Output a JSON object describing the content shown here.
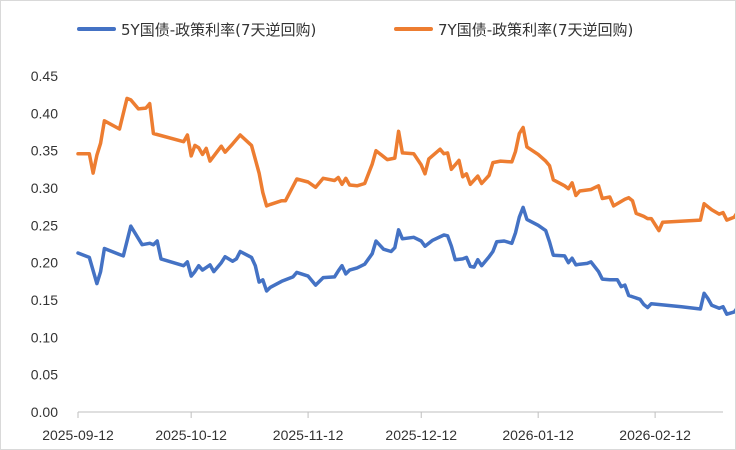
{
  "chart_data": {
    "type": "line",
    "title": "",
    "xlabel": "",
    "ylabel": "",
    "ylim": [
      0,
      0.45
    ],
    "yticks": [
      "0.00",
      "0.05",
      "0.10",
      "0.15",
      "0.20",
      "0.25",
      "0.30",
      "0.35",
      "0.40",
      "0.45"
    ],
    "xticks": [
      "2025-09-12",
      "2025-10-12",
      "2025-11-12",
      "2025-12-12",
      "2026-01-12",
      "2026-02-12"
    ],
    "xlim": [
      "2025-09-12",
      "2026-03-02"
    ],
    "grid": false,
    "legend_position": "top",
    "series": [
      {
        "name": "5Y国债-政策利率(7天逆回购)",
        "color": "#4472C4",
        "points": [
          [
            "2025-09-12",
            0.213
          ],
          [
            "2025-09-15",
            0.207
          ],
          [
            "2025-09-17",
            0.172
          ],
          [
            "2025-09-18",
            0.188
          ],
          [
            "2025-09-19",
            0.219
          ],
          [
            "2025-09-23",
            0.211
          ],
          [
            "2025-09-24",
            0.209
          ],
          [
            "2025-09-26",
            0.249
          ],
          [
            "2025-09-29",
            0.224
          ],
          [
            "2025-10-01",
            0.226
          ],
          [
            "2025-10-02",
            0.224
          ],
          [
            "2025-10-03",
            0.229
          ],
          [
            "2025-10-04",
            0.205
          ],
          [
            "2025-10-10",
            0.196
          ],
          [
            "2025-10-11",
            0.201
          ],
          [
            "2025-10-12",
            0.182
          ],
          [
            "2025-10-13",
            0.188
          ],
          [
            "2025-10-14",
            0.196
          ],
          [
            "2025-10-15",
            0.19
          ],
          [
            "2025-10-17",
            0.197
          ],
          [
            "2025-10-18",
            0.188
          ],
          [
            "2025-10-20",
            0.2
          ],
          [
            "2025-10-21",
            0.208
          ],
          [
            "2025-10-23",
            0.202
          ],
          [
            "2025-10-24",
            0.205
          ],
          [
            "2025-10-25",
            0.215
          ],
          [
            "2025-10-28",
            0.207
          ],
          [
            "2025-10-29",
            0.196
          ],
          [
            "2025-10-30",
            0.174
          ],
          [
            "2025-10-31",
            0.177
          ],
          [
            "2025-11-01",
            0.162
          ],
          [
            "2025-11-02",
            0.167
          ],
          [
            "2025-11-05",
            0.175
          ],
          [
            "2025-11-08",
            0.181
          ],
          [
            "2025-11-09",
            0.187
          ],
          [
            "2025-11-12",
            0.182
          ],
          [
            "2025-11-14",
            0.17
          ],
          [
            "2025-11-16",
            0.18
          ],
          [
            "2025-11-19",
            0.181
          ],
          [
            "2025-11-20",
            0.189
          ],
          [
            "2025-11-21",
            0.196
          ],
          [
            "2025-11-22",
            0.185
          ],
          [
            "2025-11-23",
            0.19
          ],
          [
            "2025-11-25",
            0.193
          ],
          [
            "2025-11-27",
            0.198
          ],
          [
            "2025-11-29",
            0.212
          ],
          [
            "2025-11-30",
            0.229
          ],
          [
            "2025-12-02",
            0.218
          ],
          [
            "2025-12-04",
            0.215
          ],
          [
            "2025-12-05",
            0.22
          ],
          [
            "2025-12-06",
            0.244
          ],
          [
            "2025-12-07",
            0.232
          ],
          [
            "2025-12-10",
            0.234
          ],
          [
            "2025-12-12",
            0.229
          ],
          [
            "2025-12-13",
            0.222
          ],
          [
            "2025-12-15",
            0.23
          ],
          [
            "2025-12-18",
            0.237
          ],
          [
            "2025-12-19",
            0.236
          ],
          [
            "2025-12-20",
            0.222
          ],
          [
            "2025-12-21",
            0.204
          ],
          [
            "2025-12-23",
            0.205
          ],
          [
            "2025-12-24",
            0.207
          ],
          [
            "2025-12-25",
            0.195
          ],
          [
            "2025-12-26",
            0.194
          ],
          [
            "2025-12-27",
            0.204
          ],
          [
            "2025-12-28",
            0.196
          ],
          [
            "2025-12-30",
            0.208
          ],
          [
            "2025-12-31",
            0.215
          ],
          [
            "2026-01-01",
            0.228
          ],
          [
            "2026-01-03",
            0.229
          ],
          [
            "2026-01-05",
            0.226
          ],
          [
            "2026-01-06",
            0.24
          ],
          [
            "2026-01-07",
            0.261
          ],
          [
            "2026-01-08",
            0.274
          ],
          [
            "2026-01-09",
            0.258
          ],
          [
            "2026-01-12",
            0.25
          ],
          [
            "2026-01-14",
            0.243
          ],
          [
            "2026-01-15",
            0.228
          ],
          [
            "2026-01-16",
            0.21
          ],
          [
            "2026-01-19",
            0.209
          ],
          [
            "2026-01-20",
            0.2
          ],
          [
            "2026-01-21",
            0.206
          ],
          [
            "2026-01-22",
            0.197
          ],
          [
            "2026-01-23",
            0.198
          ],
          [
            "2026-01-25",
            0.199
          ],
          [
            "2026-01-26",
            0.201
          ],
          [
            "2026-01-28",
            0.188
          ],
          [
            "2026-01-29",
            0.178
          ],
          [
            "2026-01-31",
            0.177
          ],
          [
            "2026-02-02",
            0.177
          ],
          [
            "2026-02-03",
            0.168
          ],
          [
            "2026-02-04",
            0.17
          ],
          [
            "2026-02-05",
            0.156
          ],
          [
            "2026-02-08",
            0.151
          ],
          [
            "2026-02-09",
            0.144
          ],
          [
            "2026-02-10",
            0.14
          ],
          [
            "2026-02-11",
            0.145
          ],
          [
            "2026-02-19",
            0.141
          ],
          [
            "2026-02-24",
            0.138
          ],
          [
            "2026-02-25",
            0.159
          ],
          [
            "2026-02-26",
            0.152
          ],
          [
            "2026-02-27",
            0.143
          ],
          [
            "2026-03-01",
            0.139
          ],
          [
            "2026-03-02",
            0.141
          ],
          [
            "2026-03-03",
            0.131
          ],
          [
            "2026-03-05",
            0.134
          ],
          [
            "2026-03-07",
            0.148
          ],
          [
            "2026-03-08",
            0.158
          ],
          [
            "2026-03-09",
            0.154
          ],
          [
            "2026-03-10",
            0.16
          ]
        ]
      },
      {
        "name": "7Y国债-政策利率(7天逆回购)",
        "color": "#ED7D31",
        "points": [
          [
            "2025-09-12",
            0.346
          ],
          [
            "2025-09-15",
            0.346
          ],
          [
            "2025-09-16",
            0.32
          ],
          [
            "2025-09-17",
            0.344
          ],
          [
            "2025-09-18",
            0.36
          ],
          [
            "2025-09-19",
            0.39
          ],
          [
            "2025-09-23",
            0.379
          ],
          [
            "2025-09-25",
            0.42
          ],
          [
            "2025-09-26",
            0.418
          ],
          [
            "2025-09-28",
            0.406
          ],
          [
            "2025-09-30",
            0.407
          ],
          [
            "2025-10-01",
            0.413
          ],
          [
            "2025-10-02",
            0.373
          ],
          [
            "2025-10-10",
            0.362
          ],
          [
            "2025-10-11",
            0.371
          ],
          [
            "2025-10-12",
            0.343
          ],
          [
            "2025-10-13",
            0.357
          ],
          [
            "2025-10-14",
            0.354
          ],
          [
            "2025-10-15",
            0.345
          ],
          [
            "2025-10-16",
            0.353
          ],
          [
            "2025-10-17",
            0.336
          ],
          [
            "2025-10-20",
            0.356
          ],
          [
            "2025-10-21",
            0.348
          ],
          [
            "2025-10-23",
            0.359
          ],
          [
            "2025-10-25",
            0.371
          ],
          [
            "2025-10-28",
            0.357
          ],
          [
            "2025-10-30",
            0.32
          ],
          [
            "2025-10-31",
            0.294
          ],
          [
            "2025-11-01",
            0.276
          ],
          [
            "2025-11-02",
            0.278
          ],
          [
            "2025-11-05",
            0.283
          ],
          [
            "2025-11-06",
            0.283
          ],
          [
            "2025-11-09",
            0.312
          ],
          [
            "2025-11-12",
            0.308
          ],
          [
            "2025-11-14",
            0.301
          ],
          [
            "2025-11-16",
            0.313
          ],
          [
            "2025-11-19",
            0.31
          ],
          [
            "2025-11-20",
            0.314
          ],
          [
            "2025-11-21",
            0.305
          ],
          [
            "2025-11-22",
            0.313
          ],
          [
            "2025-11-23",
            0.304
          ],
          [
            "2025-11-25",
            0.303
          ],
          [
            "2025-11-27",
            0.306
          ],
          [
            "2025-11-29",
            0.332
          ],
          [
            "2025-11-30",
            0.35
          ],
          [
            "2025-12-03",
            0.338
          ],
          [
            "2025-12-05",
            0.34
          ],
          [
            "2025-12-06",
            0.376
          ],
          [
            "2025-12-07",
            0.347
          ],
          [
            "2025-12-10",
            0.346
          ],
          [
            "2025-12-12",
            0.331
          ],
          [
            "2025-12-13",
            0.319
          ],
          [
            "2025-12-14",
            0.339
          ],
          [
            "2025-12-17",
            0.352
          ],
          [
            "2025-12-18",
            0.346
          ],
          [
            "2025-12-19",
            0.347
          ],
          [
            "2025-12-20",
            0.325
          ],
          [
            "2025-12-22",
            0.337
          ],
          [
            "2025-12-23",
            0.315
          ],
          [
            "2025-12-24",
            0.319
          ],
          [
            "2025-12-25",
            0.305
          ],
          [
            "2025-12-27",
            0.316
          ],
          [
            "2025-12-28",
            0.306
          ],
          [
            "2025-12-30",
            0.317
          ],
          [
            "2025-12-31",
            0.334
          ],
          [
            "2026-01-02",
            0.336
          ],
          [
            "2026-01-05",
            0.335
          ],
          [
            "2026-01-06",
            0.349
          ],
          [
            "2026-01-07",
            0.373
          ],
          [
            "2026-01-08",
            0.381
          ],
          [
            "2026-01-09",
            0.355
          ],
          [
            "2026-01-12",
            0.345
          ],
          [
            "2026-01-14",
            0.336
          ],
          [
            "2026-01-15",
            0.33
          ],
          [
            "2026-01-16",
            0.311
          ],
          [
            "2026-01-19",
            0.303
          ],
          [
            "2026-01-20",
            0.299
          ],
          [
            "2026-01-21",
            0.307
          ],
          [
            "2026-01-22",
            0.29
          ],
          [
            "2026-01-23",
            0.296
          ],
          [
            "2026-01-26",
            0.298
          ],
          [
            "2026-01-28",
            0.303
          ],
          [
            "2026-01-29",
            0.286
          ],
          [
            "2026-01-31",
            0.288
          ],
          [
            "2026-02-01",
            0.276
          ],
          [
            "2026-02-04",
            0.285
          ],
          [
            "2026-02-05",
            0.287
          ],
          [
            "2026-02-06",
            0.283
          ],
          [
            "2026-02-07",
            0.266
          ],
          [
            "2026-02-09",
            0.262
          ],
          [
            "2026-02-10",
            0.259
          ],
          [
            "2026-02-11",
            0.259
          ],
          [
            "2026-02-12",
            0.251
          ],
          [
            "2026-02-13",
            0.243
          ],
          [
            "2026-02-14",
            0.254
          ],
          [
            "2026-02-24",
            0.257
          ],
          [
            "2026-02-25",
            0.279
          ],
          [
            "2026-02-27",
            0.271
          ],
          [
            "2026-03-01",
            0.265
          ],
          [
            "2026-03-02",
            0.267
          ],
          [
            "2026-03-03",
            0.257
          ],
          [
            "2026-03-05",
            0.261
          ],
          [
            "2026-03-07",
            0.277
          ],
          [
            "2026-03-08",
            0.288
          ],
          [
            "2026-03-09",
            0.286
          ],
          [
            "2026-03-10",
            0.293
          ]
        ]
      }
    ]
  }
}
